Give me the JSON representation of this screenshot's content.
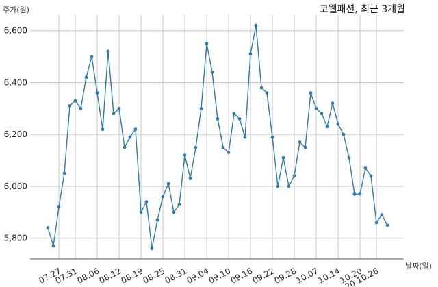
{
  "chart_data": {
    "type": "line",
    "title": "코웰패션, 최근 3개월",
    "xlabel": "날짜(일)",
    "ylabel": "주가(원)",
    "ylim": [
      5720,
      6660
    ],
    "yticks": [
      5800,
      6000,
      6200,
      6400,
      6600
    ],
    "ytick_labels": [
      "5,800",
      "6,000",
      "6,200",
      "6,400",
      "6,600"
    ],
    "xtick_labels": [
      "07.27",
      "07.31",
      "08.06",
      "08.12",
      "08.19",
      "08.25",
      "08.31",
      "09.04",
      "09.10",
      "09.16",
      "09.22",
      "09.28",
      "10.07",
      "10.14",
      "10.20",
      "20.10.26"
    ],
    "xtick_index": [
      2,
      5,
      9,
      13,
      17,
      21,
      25,
      29,
      33,
      37,
      41,
      45,
      49,
      53,
      57,
      60
    ],
    "grid": true,
    "colors": {
      "line": "#2f7aa8",
      "marker": "#2f7aa8"
    },
    "series": [
      {
        "values": [
          5840,
          5770,
          5920,
          6050,
          6310,
          6330,
          6300,
          6420,
          6500,
          6360,
          6220,
          6520,
          6280,
          6300,
          6150,
          6190,
          6220,
          5900,
          5940,
          5760,
          5870,
          5960,
          6010,
          5900,
          5930,
          6120,
          6030,
          6150,
          6300,
          6550,
          6440,
          6260,
          6150,
          6130,
          6280,
          6260,
          6190,
          6510,
          6620,
          6380,
          6360,
          6190,
          6000,
          6110,
          6000,
          6040,
          6170,
          6150,
          6360,
          6300,
          6280,
          6230,
          6320,
          6240,
          6200,
          6110,
          5970,
          5970,
          6070,
          6040,
          5860,
          5890,
          5850
        ]
      }
    ]
  }
}
